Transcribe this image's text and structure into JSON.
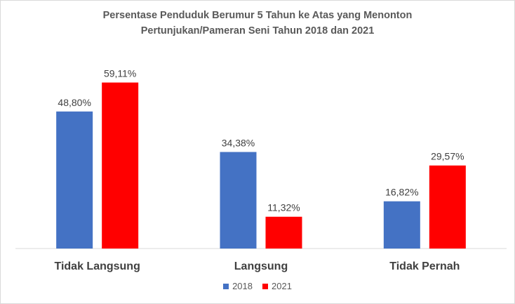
{
  "chart_data": {
    "type": "bar",
    "title": "Persentase Penduduk Berumur 5 Tahun ke Atas yang Menonton Pertunjukan/Pameran  Seni Tahun 2018 dan 2021",
    "title_lines": [
      "Persentase Penduduk Berumur 5 Tahun ke Atas yang Menonton",
      "Pertunjukan/Pameran  Seni Tahun 2018 dan 2021"
    ],
    "categories": [
      "Tidak Langsung",
      "Langsung",
      "Tidak Pernah"
    ],
    "series": [
      {
        "name": "2018",
        "color": "#4472c4",
        "values": [
          48.8,
          34.38,
          16.82
        ],
        "labels": [
          "48,80%",
          "34,38%",
          "16,82%"
        ]
      },
      {
        "name": "2021",
        "color": "#ff0000",
        "values": [
          59.11,
          11.32,
          29.57
        ],
        "labels": [
          "59,11%",
          "11,32%",
          "29,57%"
        ]
      }
    ],
    "ylim": [
      0,
      65
    ],
    "xlabel": "",
    "ylabel": "",
    "grid": false,
    "legend_position": "bottom"
  }
}
